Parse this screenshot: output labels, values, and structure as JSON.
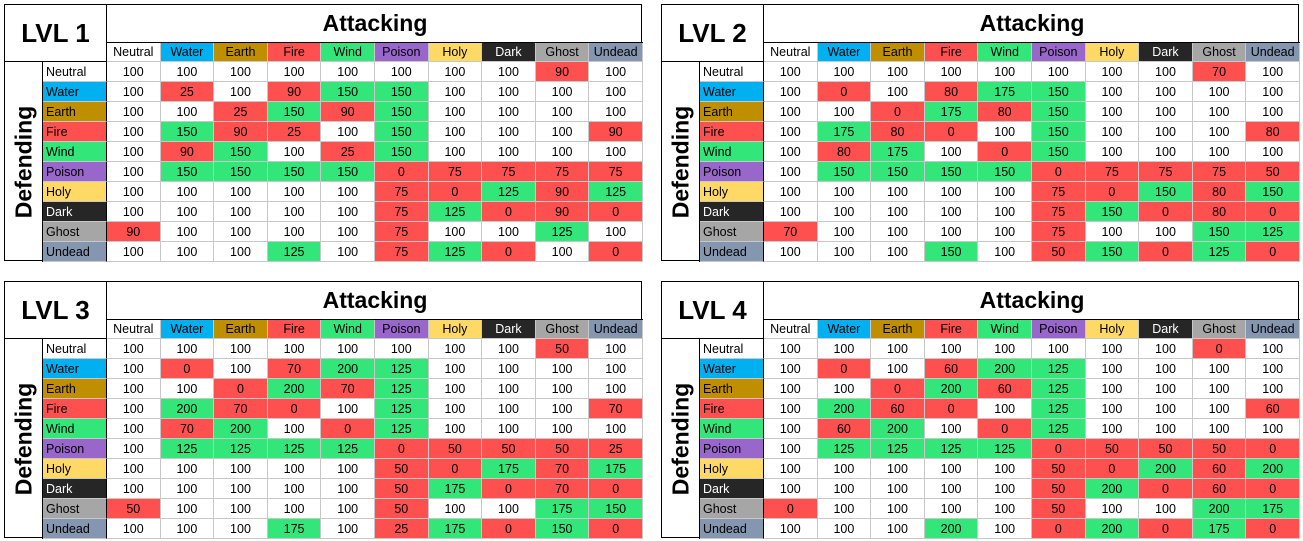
{
  "attacking_label": "Attacking",
  "defending_label": "Defending",
  "elements": [
    "Neutral",
    "Water",
    "Earth",
    "Fire",
    "Wind",
    "Poison",
    "Holy",
    "Dark",
    "Ghost",
    "Undead"
  ],
  "element_colors": {
    "Neutral": "#ffffff",
    "Water": "#00b0f0",
    "Earth": "#bf8f00",
    "Fire": "#ff5050",
    "Wind": "#33e67a",
    "Poison": "#9966cc",
    "Holy": "#ffd966",
    "Dark": "#262626",
    "Ghost": "#a6a6a6",
    "Undead": "#8496b0"
  },
  "value_colors": {
    "low": "#ff5050",
    "neutral": "#ffffff",
    "high": "#33e67a"
  },
  "tables": [
    {
      "level": "LVL 1",
      "rows": [
        [
          100,
          100,
          100,
          100,
          100,
          100,
          100,
          100,
          90,
          100
        ],
        [
          100,
          25,
          100,
          90,
          150,
          150,
          100,
          100,
          100,
          100
        ],
        [
          100,
          100,
          25,
          150,
          90,
          150,
          100,
          100,
          100,
          100
        ],
        [
          100,
          150,
          90,
          25,
          100,
          150,
          100,
          100,
          100,
          90
        ],
        [
          100,
          90,
          150,
          100,
          25,
          150,
          100,
          100,
          100,
          100
        ],
        [
          100,
          150,
          150,
          150,
          150,
          0,
          75,
          75,
          75,
          75
        ],
        [
          100,
          100,
          100,
          100,
          100,
          75,
          0,
          125,
          90,
          125
        ],
        [
          100,
          100,
          100,
          100,
          100,
          75,
          125,
          0,
          90,
          0
        ],
        [
          90,
          100,
          100,
          100,
          100,
          75,
          100,
          100,
          125,
          100
        ],
        [
          100,
          100,
          100,
          125,
          100,
          75,
          125,
          0,
          100,
          0
        ]
      ]
    },
    {
      "level": "LVL 2",
      "rows": [
        [
          100,
          100,
          100,
          100,
          100,
          100,
          100,
          100,
          70,
          100
        ],
        [
          100,
          0,
          100,
          80,
          175,
          150,
          100,
          100,
          100,
          100
        ],
        [
          100,
          100,
          0,
          175,
          80,
          150,
          100,
          100,
          100,
          100
        ],
        [
          100,
          175,
          80,
          0,
          100,
          150,
          100,
          100,
          100,
          80
        ],
        [
          100,
          80,
          175,
          100,
          0,
          150,
          100,
          100,
          100,
          100
        ],
        [
          100,
          150,
          150,
          150,
          150,
          0,
          75,
          75,
          75,
          50
        ],
        [
          100,
          100,
          100,
          100,
          100,
          75,
          0,
          150,
          80,
          150
        ],
        [
          100,
          100,
          100,
          100,
          100,
          75,
          150,
          0,
          80,
          0
        ],
        [
          70,
          100,
          100,
          100,
          100,
          75,
          100,
          100,
          150,
          125
        ],
        [
          100,
          100,
          100,
          150,
          100,
          50,
          150,
          0,
          125,
          0
        ]
      ]
    },
    {
      "level": "LVL 3",
      "rows": [
        [
          100,
          100,
          100,
          100,
          100,
          100,
          100,
          100,
          50,
          100
        ],
        [
          100,
          0,
          100,
          70,
          200,
          125,
          100,
          100,
          100,
          100
        ],
        [
          100,
          100,
          0,
          200,
          70,
          125,
          100,
          100,
          100,
          100
        ],
        [
          100,
          200,
          70,
          0,
          100,
          125,
          100,
          100,
          100,
          70
        ],
        [
          100,
          70,
          200,
          100,
          0,
          125,
          100,
          100,
          100,
          100
        ],
        [
          100,
          125,
          125,
          125,
          125,
          0,
          50,
          50,
          50,
          25
        ],
        [
          100,
          100,
          100,
          100,
          100,
          50,
          0,
          175,
          70,
          175
        ],
        [
          100,
          100,
          100,
          100,
          100,
          50,
          175,
          0,
          70,
          0
        ],
        [
          50,
          100,
          100,
          100,
          100,
          50,
          100,
          100,
          175,
          150
        ],
        [
          100,
          100,
          100,
          175,
          100,
          25,
          175,
          0,
          150,
          0
        ]
      ]
    },
    {
      "level": "LVL 4",
      "rows": [
        [
          100,
          100,
          100,
          100,
          100,
          100,
          100,
          100,
          0,
          100
        ],
        [
          100,
          0,
          100,
          60,
          200,
          125,
          100,
          100,
          100,
          100
        ],
        [
          100,
          100,
          0,
          200,
          60,
          125,
          100,
          100,
          100,
          100
        ],
        [
          100,
          200,
          60,
          0,
          100,
          125,
          100,
          100,
          100,
          60
        ],
        [
          100,
          60,
          200,
          100,
          0,
          125,
          100,
          100,
          100,
          100
        ],
        [
          100,
          125,
          125,
          125,
          125,
          0,
          50,
          50,
          50,
          0
        ],
        [
          100,
          100,
          100,
          100,
          100,
          50,
          0,
          200,
          60,
          200
        ],
        [
          100,
          100,
          100,
          100,
          100,
          50,
          200,
          0,
          60,
          0
        ],
        [
          0,
          100,
          100,
          100,
          100,
          50,
          100,
          100,
          200,
          175
        ],
        [
          100,
          100,
          100,
          200,
          100,
          0,
          200,
          0,
          175,
          0
        ]
      ]
    }
  ]
}
